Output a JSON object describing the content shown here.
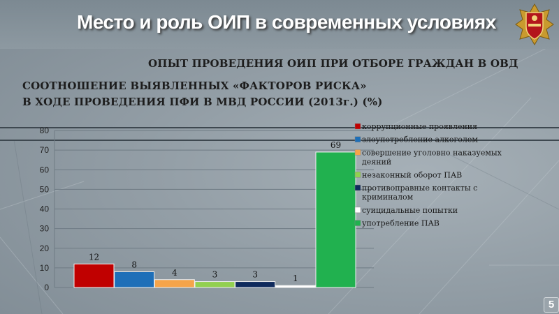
{
  "slide": {
    "title": "Место и роль ОИП в современных условиях",
    "subtitle": "ОПЫТ ПРОВЕДЕНИЯ ОИП ПРИ ОТБОРЕ ГРАЖДАН В ОВД",
    "chart_title_line1": "СООТНОШЕНИЕ ВЫЯВЛЕННЫХ «ФАКТОРОВ РИСКА»",
    "chart_title_line2": "В ХОДЕ ПРОВЕДЕНИЯ ПФИ В МВД РОССИИ (2013г.) (%)",
    "page_number": "5",
    "emblem_icon": "police-shield-emblem-icon"
  },
  "chart_data": {
    "type": "bar",
    "title": "СООТНОШЕНИЕ ВЫЯВЛЕННЫХ «ФАКТОРОВ РИСКА» В ХОДЕ ПРОВЕДЕНИЯ ПФИ В МВД РОССИИ (2013г.) (%)",
    "ylim": [
      0,
      80
    ],
    "yticks": [
      0,
      10,
      20,
      30,
      40,
      50,
      60,
      70,
      80
    ],
    "grid": true,
    "legend_position": "right",
    "series": [
      {
        "name": "коррупционные проявления",
        "value": 12,
        "color": "#c00000",
        "label": "12"
      },
      {
        "name": "злоупотребление алкоголем",
        "value": 8,
        "color": "#1e6fb8",
        "label": "8"
      },
      {
        "name": "совершение уголовно наказуемых деяний",
        "value": 4,
        "color": "#f5a44a",
        "label": "4"
      },
      {
        "name": "незаконный оборот ПАВ",
        "value": 3,
        "color": "#92d050",
        "label": "3"
      },
      {
        "name": "противоправные контакты с криминалом",
        "value": 3,
        "color": "#0f2a5c",
        "label": "3"
      },
      {
        "name": "суицидальные попытки",
        "value": 1,
        "color": "#ffffff",
        "label": "1"
      },
      {
        "name": "употребление ПАВ",
        "value": 69,
        "color": "#21b14f",
        "label": "69"
      }
    ],
    "legend_lines": [
      [
        "коррупционные проявления"
      ],
      [
        "злоупотребление алкоголем"
      ],
      [
        "совершение уголовно наказуемых",
        "деяний"
      ],
      [
        "незаконный оборот ПАВ"
      ],
      [
        "противоправные контакты с",
        "криминалом"
      ],
      [
        "суицидальные попытки"
      ],
      [
        "употребление ПАВ"
      ]
    ]
  }
}
